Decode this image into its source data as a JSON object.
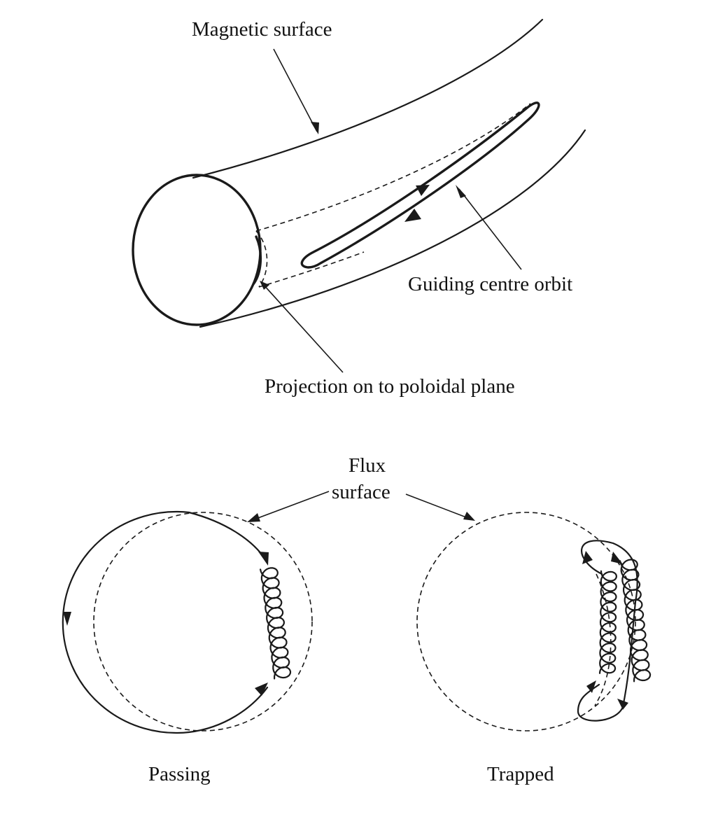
{
  "figure": {
    "labels": {
      "magnetic_surface": "Magnetic surface",
      "guiding_centre_orbit": "Guiding centre orbit",
      "projection": "Projection on to poloidal plane",
      "flux_line1": "Flux",
      "flux_line2": "surface",
      "passing": "Passing",
      "trapped": "Trapped"
    },
    "colors": {
      "ink": "#1a1a1a",
      "background": "#ffffff"
    }
  }
}
